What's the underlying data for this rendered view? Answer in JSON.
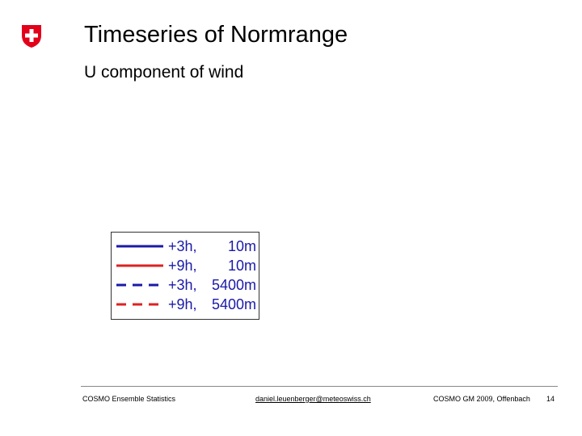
{
  "header": {
    "title": "Timeseries of Normrange",
    "subtitle": "U component of wind"
  },
  "legend": {
    "items": [
      {
        "lead": "+3h,",
        "height": "10m",
        "color": "#1a1aa8",
        "dashed": false
      },
      {
        "lead": "+9h,",
        "height": "10m",
        "color": "#dd2222",
        "dashed": false
      },
      {
        "lead": "+3h,",
        "height": "5400m",
        "color": "#1a1aa8",
        "dashed": true
      },
      {
        "lead": "+9h,",
        "height": "5400m",
        "color": "#dd2222",
        "dashed": true
      }
    ]
  },
  "footer": {
    "left": "COSMO Ensemble Statistics",
    "email": "daniel.leuenberger@meteoswiss.ch",
    "event": "COSMO GM 2009, Offenbach",
    "page": "14"
  }
}
